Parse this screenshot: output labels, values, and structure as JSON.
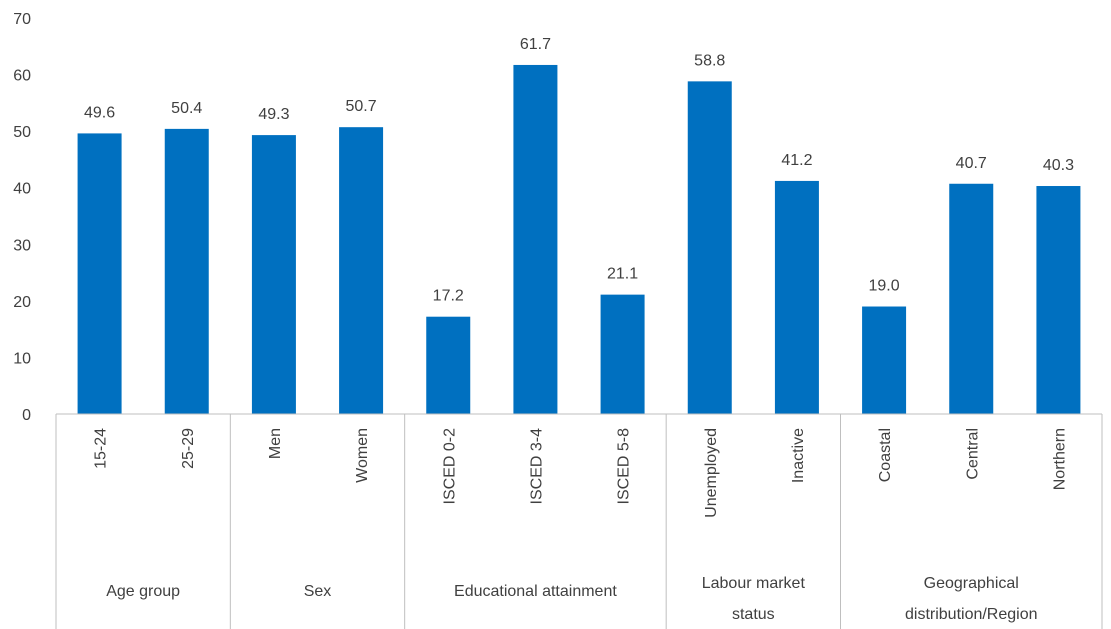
{
  "colors": {
    "bar": "#0070C0",
    "axis": "#BFBFBF",
    "text": "#404040"
  },
  "chart_data": {
    "type": "bar",
    "categories": [
      "15-24",
      "25-29",
      "Men",
      "Women",
      "ISCED 0-2",
      "ISCED 3-4",
      "ISCED 5-8",
      "Unemployed",
      "Inactive",
      "Coastal",
      "Central",
      "Northern"
    ],
    "values": [
      49.6,
      50.4,
      49.3,
      50.7,
      17.2,
      61.7,
      21.1,
      58.8,
      41.2,
      19.0,
      40.7,
      40.3
    ],
    "value_labels": [
      "49.6",
      "50.4",
      "49.3",
      "50.7",
      "17.2",
      "61.7",
      "21.1",
      "58.8",
      "41.2",
      "19.0",
      "40.7",
      "40.3"
    ],
    "groups": [
      {
        "lines": [
          "Age group"
        ],
        "count": 2
      },
      {
        "lines": [
          "Sex"
        ],
        "count": 2
      },
      {
        "lines": [
          "Educational attainment"
        ],
        "count": 3
      },
      {
        "lines": [
          "Labour market",
          "status"
        ],
        "count": 2
      },
      {
        "lines": [
          "Geographical",
          "distribution/Region"
        ],
        "count": 3
      }
    ],
    "yticks": [
      "0",
      "10",
      "20",
      "30",
      "40",
      "50",
      "60",
      "70"
    ],
    "ylim": [
      0,
      70
    ],
    "grid": false,
    "legend": "none"
  }
}
